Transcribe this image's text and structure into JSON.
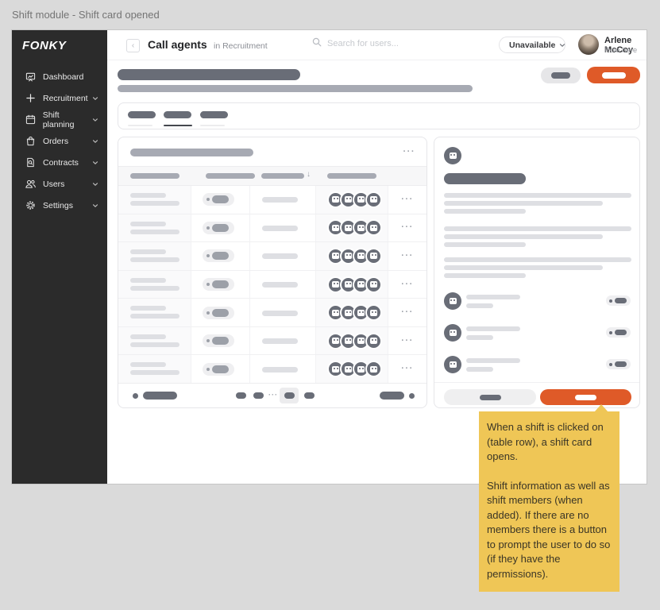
{
  "window_label": "Shift module - Shift card opened",
  "sidebar": {
    "logo": "FONKY",
    "items": [
      {
        "id": "dashboard",
        "label": "Dashboard",
        "icon": "dashboard",
        "chevron": false
      },
      {
        "id": "recruitment",
        "label": "Recruitment",
        "icon": "plus",
        "chevron": true
      },
      {
        "id": "shift-planning",
        "label": "Shift planning",
        "icon": "calendar",
        "chevron": true
      },
      {
        "id": "orders",
        "label": "Orders",
        "icon": "bag",
        "chevron": true
      },
      {
        "id": "contracts",
        "label": "Contracts",
        "icon": "contract",
        "chevron": true
      },
      {
        "id": "users",
        "label": "Users",
        "icon": "users",
        "chevron": true
      },
      {
        "id": "settings",
        "label": "Settings",
        "icon": "gear",
        "chevron": true
      }
    ]
  },
  "header": {
    "title": "Call agents",
    "context": "in Recruitment",
    "search_placeholder": "Search for users...",
    "status": {
      "label": "Unavailable"
    },
    "user": {
      "name": "Arlene McCoy",
      "role": "Role here"
    }
  },
  "tabs": {
    "count": 3,
    "active_index": 1
  },
  "table": {
    "sort_icon": "↓",
    "more_icon": "···",
    "rows": [
      {
        "avatars": 4
      },
      {
        "avatars": 4
      },
      {
        "avatars": 4
      },
      {
        "avatars": 4
      },
      {
        "avatars": 4
      },
      {
        "avatars": 4
      },
      {
        "avatars": 4
      }
    ]
  },
  "pagination": {
    "ellipsis": "···"
  },
  "shift_card": {
    "members": [
      {},
      {},
      {}
    ]
  },
  "note": {
    "p1": "When a shift is clicked on (table row), a shift card opens.",
    "p2": "Shift information as well as shift members (when added). If there are no members there is a button to prompt the user to do so (if they have the permissions)."
  },
  "colors": {
    "accent_orange": "#DF5A28",
    "status_red": "#F2695C",
    "sidebar_bg": "#2B2B2B",
    "canvas_bg": "#DADADA",
    "note_yellow": "#EFC656",
    "skeleton_dark": "#696D77",
    "skeleton_mid": "#A7AAB3",
    "skeleton_light": "#DEDFE3"
  }
}
